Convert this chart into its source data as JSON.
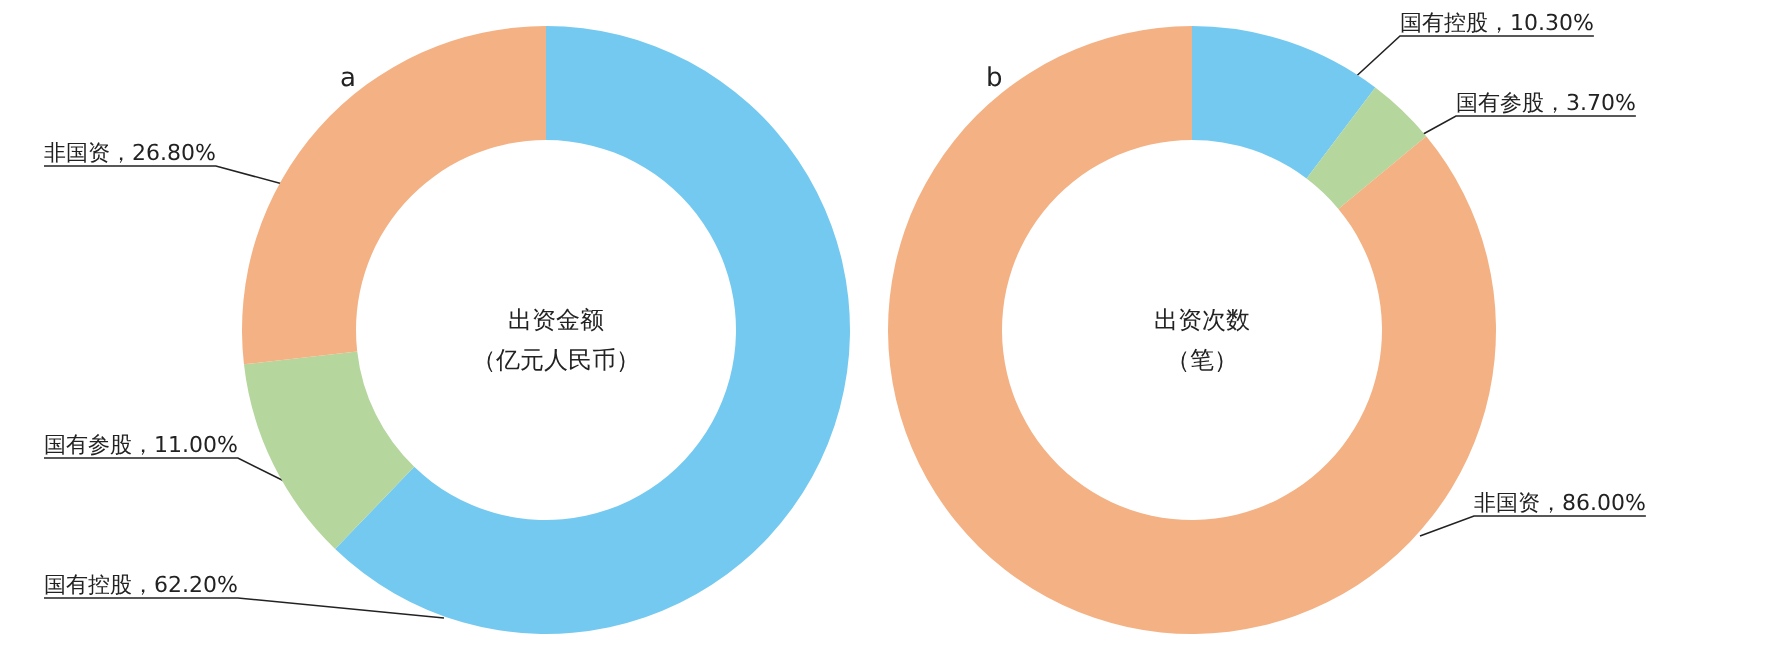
{
  "chart_data": [
    {
      "type": "donut",
      "title": "a",
      "annotations": [
        "出资金额",
        "（亿元人民币）"
      ],
      "categories": [
        "国有控股",
        "国有参股",
        "非国资"
      ],
      "values": [
        62.2,
        11.0,
        26.8
      ],
      "colors": [
        "#74c9f0",
        "#b5d69c",
        "#f4b183"
      ],
      "value_labels": [
        "，62.20%",
        "，11.00%",
        "，26.80%"
      ],
      "legend": false
    },
    {
      "type": "donut",
      "title": "b",
      "annotations": [
        "出资次数",
        "（笔）"
      ],
      "categories": [
        "国有控股",
        "国有参股",
        "非国资"
      ],
      "values": [
        10.3,
        3.7,
        86.0
      ],
      "colors": [
        "#74c9f0",
        "#b5d69c",
        "#f4b183"
      ],
      "value_labels": [
        "，10.30%",
        "，3.70%",
        "，86.00%"
      ],
      "legend": false
    }
  ]
}
